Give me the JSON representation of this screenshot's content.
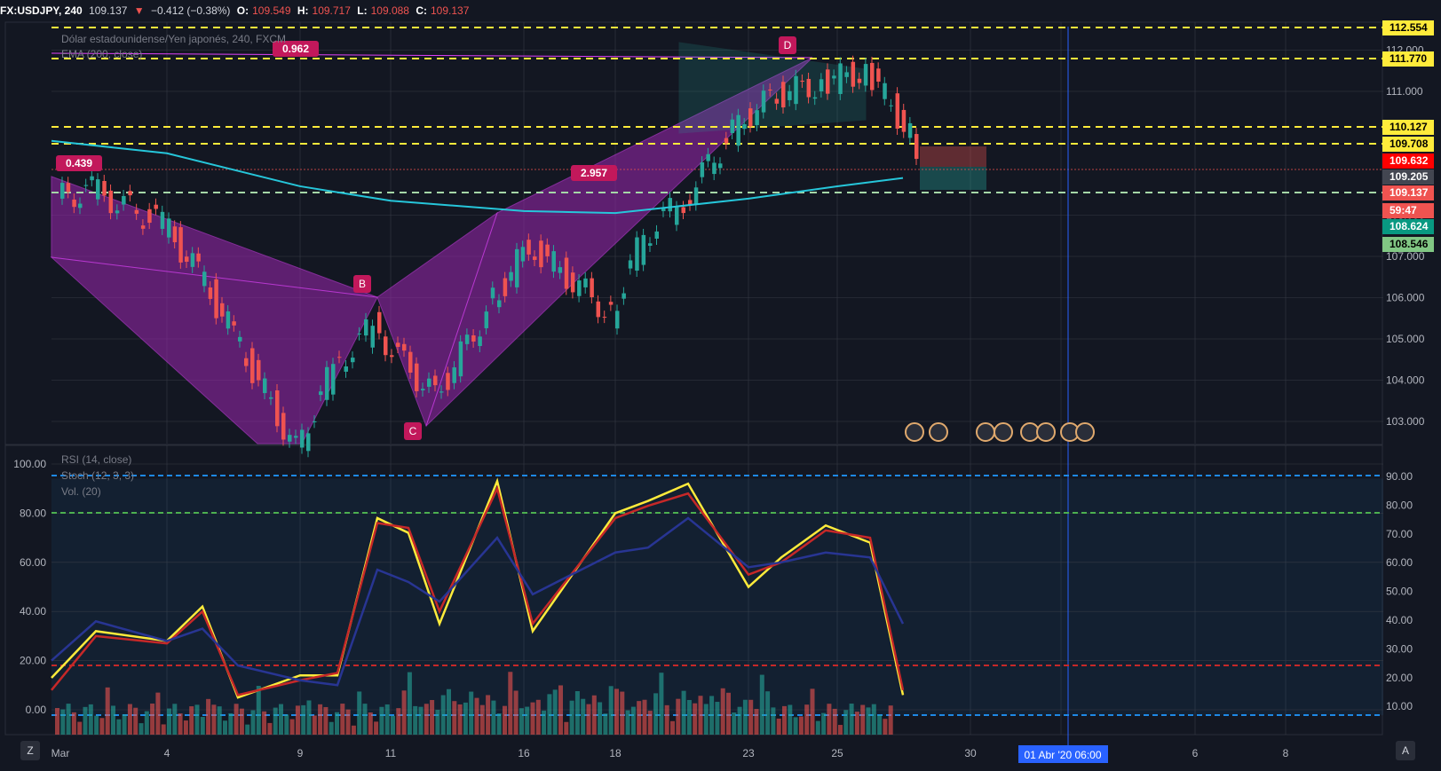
{
  "header": {
    "symbol": "FX:USDJPY, 240",
    "last": "109.137",
    "change_arrow": "▼",
    "change": "−0.412 (−0.38%)",
    "o_label": "O:",
    "o_value": "109.549",
    "h_label": "H:",
    "h_value": "109.717",
    "l_label": "L:",
    "l_value": "109.088",
    "c_label": "C:",
    "c_value": "109.137"
  },
  "legends": {
    "main_title": "Dólar estadounidense/Yen japonés, 240, FXCM",
    "ema": "EMA (200, close)",
    "rsi": "RSI (14, close)",
    "stoch": "Stoch (12, 3, 3)",
    "vol": "Vol. (20)"
  },
  "colors": {
    "background": "#131722",
    "grid": "#363a45",
    "up": "#26a69a",
    "down": "#ef5350",
    "pattern_fill": "#9c27b0",
    "ema": "#26c6da",
    "level_lines": "#ffeb3b",
    "rsi": "#283593",
    "stoch_k": "#ffeb3b",
    "stoch_d": "#c62828"
  },
  "bottom": {
    "left_button": "Z",
    "right_button": "A",
    "time_badge": "01 Abr '20   06:00"
  },
  "chart_data": [
    {
      "type": "candlestick",
      "title": "Dólar estadounidense/Yen japonés, 240, FXCM",
      "x_ticks": [
        "Mar",
        "4",
        "9",
        "11",
        "16",
        "18",
        "23",
        "25",
        "30",
        "01 Abr '20",
        "6",
        "8"
      ],
      "y_ticks": [
        "103.000",
        "104.000",
        "105.000",
        "106.000",
        "107.000",
        "108.000",
        "111.000",
        "112.000"
      ],
      "y_range": [
        102.45,
        112.65
      ],
      "price_levels": [
        {
          "label": "112.554",
          "color": "#ffeb3b"
        },
        {
          "label": "111.770",
          "color": "#ffeb3b"
        },
        {
          "label": "110.127",
          "color": "#ffeb3b"
        },
        {
          "label": "109.708",
          "color": "#ffeb3b"
        },
        {
          "label": "109.632",
          "color": "#ff0000"
        },
        {
          "label": "109.205",
          "color": "#434651"
        },
        {
          "label": "109.137",
          "color": "#ef5350"
        },
        {
          "label": "59:47",
          "color": "#ef5350"
        },
        {
          "label": "108.624",
          "color": "#089981"
        },
        {
          "label": "108.546",
          "color": "#81c784"
        }
      ],
      "pattern_points": [
        {
          "label": "B",
          "value": 106.0
        },
        {
          "label": "C",
          "value": 103.0
        },
        {
          "label": "D",
          "value": 112.3
        }
      ],
      "pattern_ratios": [
        "0.439",
        "0.962",
        "2.957"
      ],
      "ema200_points": [
        {
          "x": "Mar",
          "y": 109.8
        },
        {
          "x": "4",
          "y": 109.5
        },
        {
          "x": "9",
          "y": 108.7
        },
        {
          "x": "11",
          "y": 108.35
        },
        {
          "x": "16",
          "y": 108.1
        },
        {
          "x": "18",
          "y": 108.05
        },
        {
          "x": "23",
          "y": 108.4
        },
        {
          "x": "25",
          "y": 108.7
        },
        {
          "x": "27",
          "y": 108.9
        }
      ],
      "close_path": [
        {
          "x": "Mar",
          "y": 108.4
        },
        {
          "x": "2",
          "y": 108.6
        },
        {
          "x": "4",
          "y": 107.8
        },
        {
          "x": "5",
          "y": 106.6
        },
        {
          "x": "6",
          "y": 105.1
        },
        {
          "x": "9",
          "y": 102.3
        },
        {
          "x": "10",
          "y": 104.3
        },
        {
          "x": "11",
          "y": 105.3
        },
        {
          "x": "12",
          "y": 104.4
        },
        {
          "x": "13",
          "y": 103.6
        },
        {
          "x": "13b",
          "y": 105.9
        },
        {
          "x": "16",
          "y": 107.3
        },
        {
          "x": "17",
          "y": 105.6
        },
        {
          "x": "18",
          "y": 107.5
        },
        {
          "x": "19",
          "y": 108.4
        },
        {
          "x": "20",
          "y": 110.4
        },
        {
          "x": "23",
          "y": 110.9
        },
        {
          "x": "24",
          "y": 111.2
        },
        {
          "x": "25",
          "y": 111.5
        },
        {
          "x": "26",
          "y": 110.0
        },
        {
          "x": "27",
          "y": 109.137
        }
      ]
    },
    {
      "type": "line",
      "title": "RSI (14, close) / Stoch (12, 3, 3) / Vol. (20)",
      "y_ticks_left": [
        "100.00",
        "80.00",
        "60.00",
        "40.00",
        "20.00",
        "0.00"
      ],
      "y_ticks_right": [
        "90.00",
        "80.00",
        "70.00",
        "60.00",
        "50.00",
        "40.00",
        "30.00",
        "20.00",
        "10.00"
      ],
      "ylim": [
        0,
        100
      ],
      "levels": [
        {
          "value": 95,
          "color": "#1e88e5"
        },
        {
          "value": 81,
          "color": "#4caf50"
        },
        {
          "value": 21,
          "color": "#c62828"
        },
        {
          "value": 2,
          "color": "#1e88e5"
        }
      ],
      "x": [
        "Mar",
        "2",
        "4",
        "5",
        "6",
        "9",
        "10",
        "11",
        "12",
        "13",
        "16",
        "17",
        "18",
        "19",
        "20",
        "23",
        "24",
        "25",
        "26",
        "27"
      ],
      "series": [
        {
          "name": "Stoch %K",
          "color": "#ffeb3b",
          "values": [
            13,
            32,
            28,
            42,
            5,
            14,
            14,
            78,
            72,
            35,
            93,
            32,
            80,
            85,
            92,
            50,
            62,
            75,
            68,
            6
          ]
        },
        {
          "name": "Stoch %D",
          "color": "#c62828",
          "values": [
            8,
            30,
            27,
            40,
            6,
            12,
            15,
            76,
            74,
            40,
            90,
            35,
            78,
            83,
            88,
            55,
            60,
            73,
            70,
            8
          ]
        },
        {
          "name": "RSI",
          "color": "#283593",
          "values": [
            20,
            36,
            28,
            33,
            18,
            12,
            10,
            57,
            52,
            44,
            70,
            47,
            64,
            66,
            78,
            58,
            60,
            64,
            62,
            35
          ]
        }
      ]
    }
  ]
}
